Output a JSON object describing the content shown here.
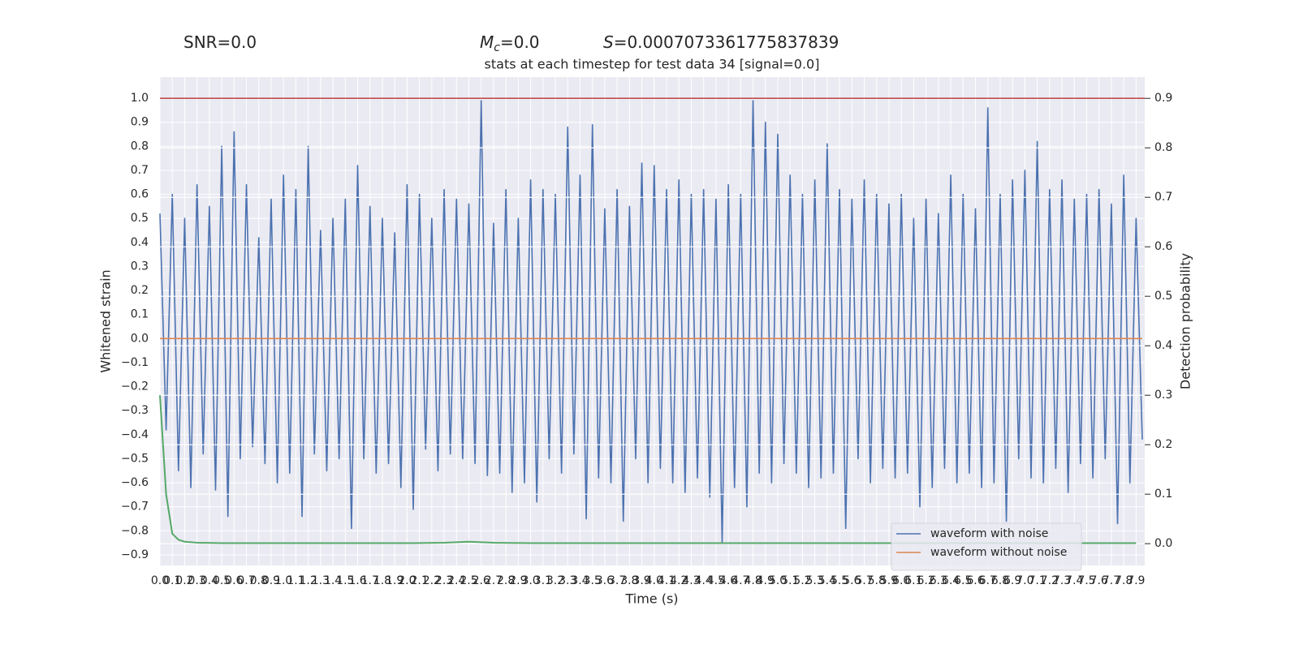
{
  "chart_data": {
    "type": "line",
    "header": [
      {
        "text": "SNR=0.0"
      },
      {
        "symbol": "M",
        "subscript": "c",
        "text": "=0.0"
      },
      {
        "symbol": "S",
        "text": "=0.0007073361775837839"
      }
    ],
    "title": "stats at each timestep for test data 34 [signal=0.0]",
    "x_label": "Time (s)",
    "y_label": "Whitened strain",
    "y2_label": "Detection probability",
    "xlim": [
      0,
      7.97
    ],
    "ylim": [
      -0.944,
      1.088
    ],
    "y2lim": [
      -0.044,
      0.943
    ],
    "grid": true,
    "legend": "lower right",
    "xticks": [
      {
        "value": 0,
        "label": "0.0"
      },
      0.1,
      0.2,
      0.3,
      0.4,
      0.5,
      0.6,
      0.7,
      0.8,
      0.9,
      {
        "value": 1,
        "label": "1.0"
      },
      1.1,
      1.2,
      1.3,
      1.4,
      1.5,
      1.6,
      1.7,
      1.8,
      1.9,
      {
        "value": 2,
        "label": "2.0"
      },
      2.1,
      2.2,
      2.3,
      2.4,
      2.5,
      2.6,
      2.7,
      2.8,
      2.9,
      {
        "value": 3,
        "label": "3.0"
      },
      3.1,
      3.2,
      3.3,
      3.4,
      3.5,
      3.6,
      3.7,
      3.8,
      3.9,
      {
        "value": 4,
        "label": "4.0"
      },
      4.1,
      4.2,
      4.3,
      4.4,
      4.5,
      4.6,
      4.7,
      4.8,
      4.9,
      {
        "value": 5,
        "label": "5.0"
      },
      5.1,
      5.2,
      5.3,
      5.4,
      5.5,
      5.6,
      5.7,
      5.8,
      5.9,
      {
        "value": 6,
        "label": "6.0"
      },
      6.1,
      6.2,
      6.3,
      6.4,
      6.5,
      6.6,
      6.7,
      6.8,
      6.9,
      {
        "value": 7,
        "label": "7.0"
      },
      7.1,
      7.2,
      7.3,
      7.4,
      7.5,
      7.6,
      7.7,
      7.8,
      7.9
    ],
    "yticks": [
      {
        "value": -0.9,
        "label": "−0.9"
      },
      {
        "value": -0.8,
        "label": "−0.8"
      },
      {
        "value": -0.7,
        "label": "−0.7"
      },
      {
        "value": -0.6,
        "label": "−0.6"
      },
      {
        "value": -0.5,
        "label": "−0.5"
      },
      {
        "value": -0.4,
        "label": "−0.4"
      },
      {
        "value": -0.3,
        "label": "−0.3"
      },
      {
        "value": -0.2,
        "label": "−0.2"
      },
      {
        "value": -0.1,
        "label": "−0.1"
      },
      {
        "value": 0,
        "label": "0.0"
      },
      0.1,
      0.2,
      0.3,
      0.4,
      0.5,
      0.6,
      0.7,
      0.8,
      0.9,
      {
        "value": 1,
        "label": "1.0"
      }
    ],
    "y2ticks": [
      {
        "value": 0,
        "label": "0.0"
      },
      0.1,
      0.2,
      0.3,
      0.4,
      0.5,
      0.6,
      0.7,
      0.8,
      0.9
    ],
    "hlines": [
      {
        "axis": "y2",
        "value": 0.9,
        "color": "#c44e52"
      }
    ],
    "series": [
      {
        "name": "waveform with noise",
        "color": "#4c72b0",
        "legend": true,
        "x": [
          0,
          0.05,
          0.1,
          0.15,
          0.2,
          0.25,
          0.3,
          0.35,
          0.4,
          0.45,
          0.5,
          0.55,
          0.6,
          0.65,
          0.7,
          0.75,
          0.8,
          0.85,
          0.9,
          0.95,
          1,
          1.05,
          1.1,
          1.15,
          1.2,
          1.25,
          1.3,
          1.35,
          1.4,
          1.45,
          1.5,
          1.55,
          1.6,
          1.65,
          1.7,
          1.75,
          1.8,
          1.85,
          1.9,
          1.95,
          2,
          2.05,
          2.1,
          2.15,
          2.2,
          2.25,
          2.3,
          2.35,
          2.4,
          2.45,
          2.5,
          2.55,
          2.6,
          2.65,
          2.7,
          2.75,
          2.8,
          2.85,
          2.9,
          2.95,
          3,
          3.05,
          3.1,
          3.15,
          3.2,
          3.25,
          3.3,
          3.35,
          3.4,
          3.45,
          3.5,
          3.55,
          3.6,
          3.65,
          3.7,
          3.75,
          3.8,
          3.85,
          3.9,
          3.95,
          4,
          4.05,
          4.1,
          4.15,
          4.2,
          4.25,
          4.3,
          4.35,
          4.4,
          4.45,
          4.5,
          4.55,
          4.6,
          4.65,
          4.7,
          4.75,
          4.8,
          4.85,
          4.9,
          4.95,
          5,
          5.05,
          5.1,
          5.15,
          5.2,
          5.25,
          5.3,
          5.35,
          5.4,
          5.45,
          5.5,
          5.55,
          5.6,
          5.65,
          5.7,
          5.75,
          5.8,
          5.85,
          5.9,
          5.95,
          6,
          6.05,
          6.1,
          6.15,
          6.2,
          6.25,
          6.3,
          6.35,
          6.4,
          6.45,
          6.5,
          6.55,
          6.6,
          6.65,
          6.7,
          6.75,
          6.8,
          6.85,
          6.9,
          6.95,
          7,
          7.05,
          7.1,
          7.15,
          7.2,
          7.25,
          7.3,
          7.35,
          7.4,
          7.45,
          7.5,
          7.55,
          7.6,
          7.65,
          7.7,
          7.75,
          7.8,
          7.85,
          7.9,
          7.95
        ],
        "values": [
          0.52,
          -0.38,
          0.6,
          -0.55,
          0.5,
          -0.62,
          0.64,
          -0.48,
          0.55,
          -0.63,
          0.8,
          -0.74,
          0.86,
          -0.5,
          0.64,
          -0.45,
          0.42,
          -0.52,
          0.58,
          -0.6,
          0.68,
          -0.56,
          0.62,
          -0.74,
          0.8,
          -0.48,
          0.45,
          -0.55,
          0.5,
          -0.5,
          0.58,
          -0.79,
          0.72,
          -0.5,
          0.55,
          -0.56,
          0.5,
          -0.52,
          0.44,
          -0.62,
          0.64,
          -0.71,
          0.6,
          -0.46,
          0.5,
          -0.55,
          0.62,
          -0.48,
          0.58,
          -0.5,
          0.56,
          -0.52,
          0.99,
          -0.57,
          0.48,
          -0.56,
          0.62,
          -0.64,
          0.5,
          -0.6,
          0.66,
          -0.68,
          0.62,
          -0.5,
          0.6,
          -0.56,
          0.88,
          -0.48,
          0.68,
          -0.75,
          0.89,
          -0.58,
          0.54,
          -0.6,
          0.62,
          -0.76,
          0.55,
          -0.5,
          0.73,
          -0.6,
          0.72,
          -0.54,
          0.62,
          -0.6,
          0.66,
          -0.64,
          0.6,
          -0.58,
          0.62,
          -0.66,
          0.58,
          -0.85,
          0.64,
          -0.62,
          0.6,
          -0.7,
          0.99,
          -0.56,
          0.9,
          -0.6,
          0.85,
          -0.52,
          0.68,
          -0.56,
          0.6,
          -0.62,
          0.66,
          -0.58,
          0.81,
          -0.56,
          0.62,
          -0.79,
          0.58,
          -0.5,
          0.66,
          -0.6,
          0.6,
          -0.54,
          0.56,
          -0.58,
          0.6,
          -0.56,
          0.5,
          -0.7,
          0.58,
          -0.62,
          0.52,
          -0.54,
          0.68,
          -0.6,
          0.6,
          -0.56,
          0.54,
          -0.62,
          0.96,
          -0.6,
          0.6,
          -0.76,
          0.66,
          -0.5,
          0.7,
          -0.58,
          0.82,
          -0.6,
          0.62,
          -0.54,
          0.66,
          -0.64,
          0.58,
          -0.52,
          0.6,
          -0.58,
          0.62,
          -0.5,
          0.56,
          -0.77,
          0.68,
          -0.6,
          0.5,
          -0.42
        ]
      },
      {
        "name": "waveform without noise",
        "color": "#dd8452",
        "legend": true,
        "x": [
          0,
          7.95
        ],
        "values": [
          0,
          0
        ]
      },
      {
        "color": "#55a868",
        "axis": "y2",
        "legend": false,
        "x": [
          0,
          0.05,
          0.1,
          0.15,
          0.2,
          0.3,
          0.5,
          1,
          2,
          2.3,
          2.5,
          2.7,
          3,
          7.9
        ],
        "values": [
          0.3,
          0.1,
          0.02,
          0.008,
          0.004,
          0.002,
          0.001,
          0.001,
          0.001,
          0.002,
          0.004,
          0.002,
          0.001,
          0.001
        ]
      }
    ]
  }
}
